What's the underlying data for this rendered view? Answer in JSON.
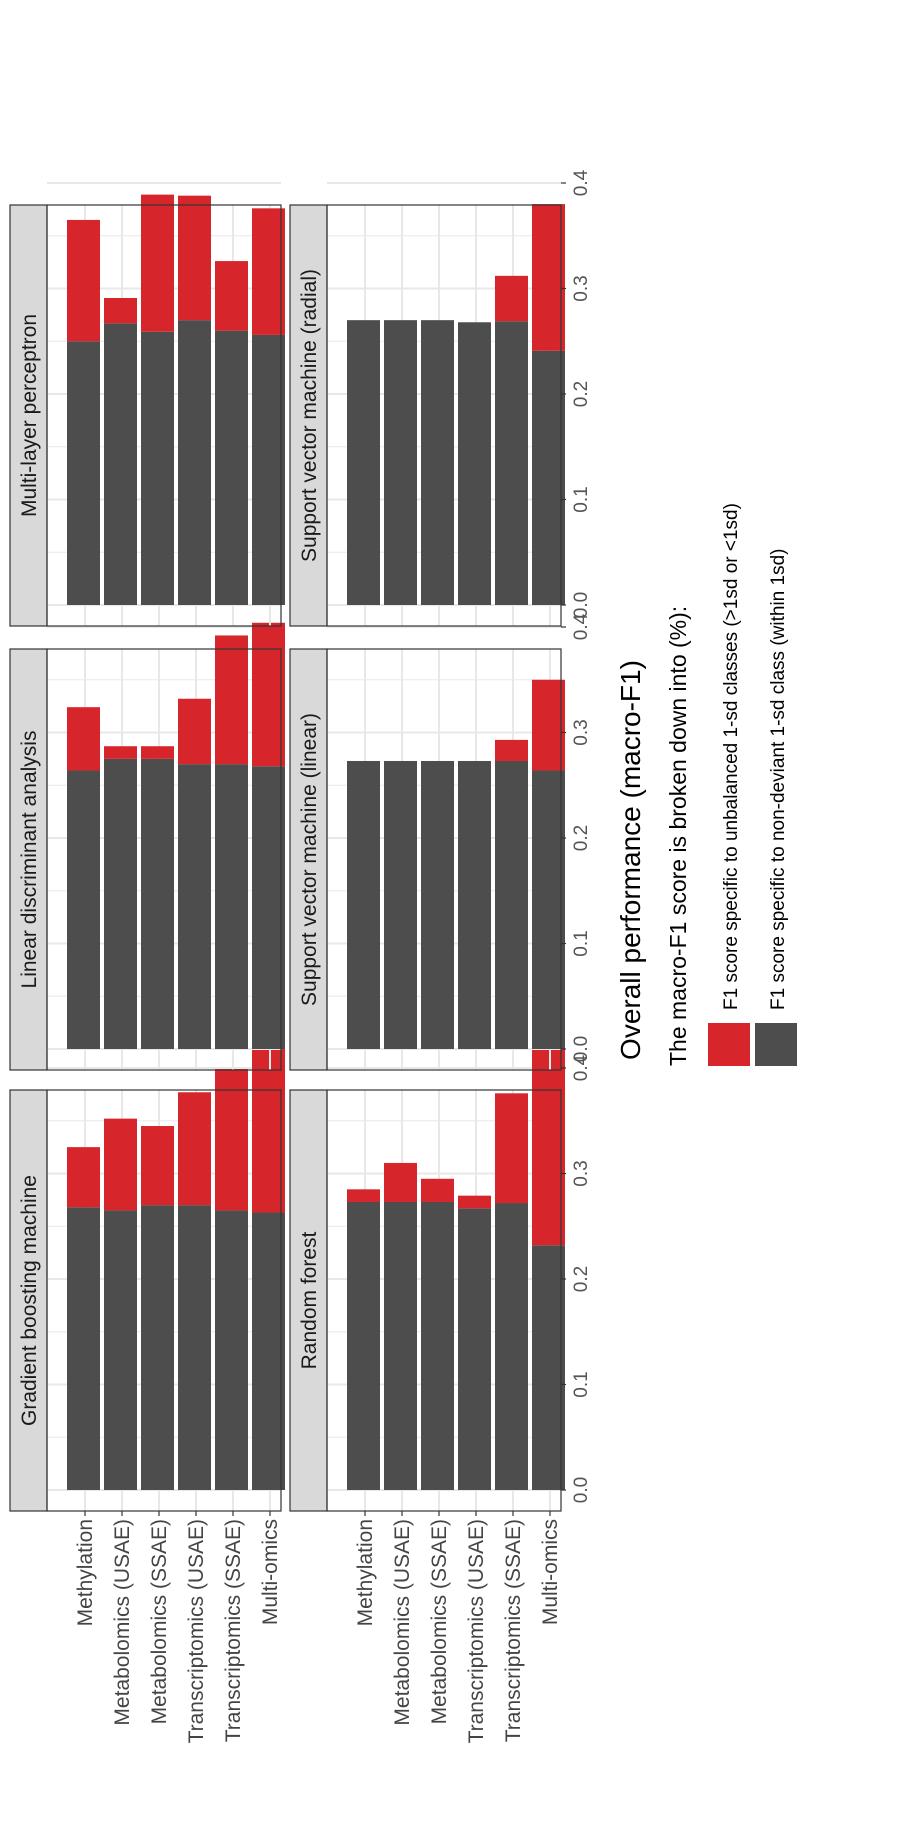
{
  "chart_data": {
    "type": "bar",
    "stacked": true,
    "facets": [
      "Gradient boosting machine",
      "Linear discriminant analysis",
      "Multi-layer perceptron",
      "Random forest",
      "Support vector machine (linear)",
      "Support vector machine (radial)"
    ],
    "categories": [
      "Multi-omics",
      "Transcriptomics (SSAE)",
      "Transcriptomics (USAE)",
      "Metabolomics (SSAE)",
      "Metabolomics (USAE)",
      "Methylation"
    ],
    "xlabel": "Overall performance (macro-F1)",
    "xlim": [
      0,
      0.45
    ],
    "xticks": [
      "0.0",
      "0.1",
      "0.2",
      "0.3",
      "0.4"
    ],
    "grid": true,
    "legend": {
      "title": "The macro-F1 score is broken down into (%):",
      "position": "bottom",
      "entries": [
        {
          "label": "F1 score specific to unbalanced 1-sd classes (>1sd or <1sd)",
          "color": "#d7262b"
        },
        {
          "label": "F1 score specific to non-deviant 1-sd class (within 1sd)",
          "color": "#4d4d4d"
        }
      ]
    },
    "series": [
      {
        "name": "F1 score specific to non-deviant 1-sd class (within 1sd)",
        "color": "#4d4d4d",
        "values": {
          "Gradient boosting machine": [
            0.263,
            0.265,
            0.27,
            0.27,
            0.265,
            0.268
          ],
          "Linear discriminant analysis": [
            0.268,
            0.27,
            0.27,
            0.275,
            0.275,
            0.264
          ],
          "Multi-layer perceptron": [
            0.256,
            0.26,
            0.27,
            0.259,
            0.267,
            0.25
          ],
          "Random forest": [
            0.232,
            0.272,
            0.267,
            0.273,
            0.273,
            0.273
          ],
          "Support vector machine (linear)": [
            0.264,
            0.273,
            0.273,
            0.273,
            0.273,
            0.273
          ],
          "Support vector machine (radial)": [
            0.241,
            0.269,
            0.268,
            0.27,
            0.27,
            0.27
          ]
        }
      },
      {
        "name": "F1 score specific to unbalanced 1-sd classes (>1sd or <1sd)",
        "color": "#d7262b",
        "values": {
          "Gradient boosting machine": [
            0.155,
            0.134,
            0.107,
            0.075,
            0.087,
            0.057
          ],
          "Linear discriminant analysis": [
            0.136,
            0.122,
            0.062,
            0.012,
            0.012,
            0.06
          ],
          "Multi-layer perceptron": [
            0.12,
            0.066,
            0.118,
            0.13,
            0.024,
            0.115
          ],
          "Random forest": [
            0.204,
            0.104,
            0.012,
            0.022,
            0.037,
            0.012
          ],
          "Support vector machine (linear)": [
            0.086,
            0.02,
            0,
            0,
            0,
            0
          ],
          "Support vector machine (radial)": [
            0.139,
            0.043,
            0,
            0,
            0,
            0
          ]
        }
      }
    ]
  }
}
